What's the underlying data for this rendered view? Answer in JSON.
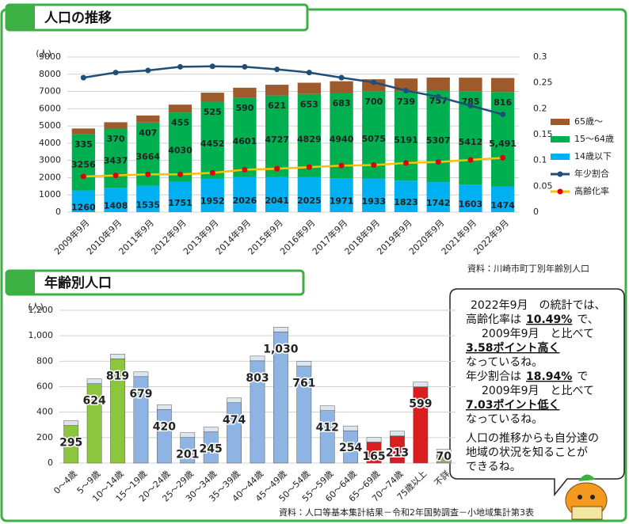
{
  "chart_data": [
    {
      "type": "bar",
      "title": "人口の推移",
      "stacked": true,
      "y_label": "(人)",
      "source": "資料：川崎市町丁別年齢別人口",
      "categories": [
        "2009年9月",
        "2010年9月",
        "2011年9月",
        "2012年9月",
        "2013年9月",
        "2014年9月",
        "2015年9月",
        "2016年9月",
        "2017年9月",
        "2018年9月",
        "2019年9月",
        "2020年9月",
        "2021年9月",
        "2022年9月"
      ],
      "series": [
        {
          "name": "14歳以下",
          "color": "#00b0f0",
          "values": [
            1260,
            1408,
            1535,
            1751,
            1952,
            2026,
            2041,
            2025,
            1971,
            1933,
            1823,
            1742,
            1603,
            1474
          ]
        },
        {
          "name": "15～64歳",
          "color": "#00b050",
          "values": [
            3256,
            3437,
            3664,
            4030,
            4452,
            4601,
            4727,
            4829,
            4940,
            5075,
            5191,
            5307,
            5412,
            5491
          ],
          "value_labels": [
            "3256",
            "3437",
            "3664",
            "4030",
            "4452",
            "4601",
            "4727",
            "4829",
            "4940",
            "5075",
            "5191",
            "5307",
            "5412",
            "5,491"
          ]
        },
        {
          "name": "65歳～",
          "color": "#9e5a2a",
          "values": [
            335,
            370,
            407,
            455,
            525,
            590,
            621,
            653,
            683,
            700,
            739,
            757,
            785,
            816
          ]
        },
        {
          "name": "年少割合",
          "type": "line",
          "axis": "y2",
          "color": "#1f4e79",
          "marker_color": "#1f4e79",
          "values": [
            0.26,
            0.27,
            0.274,
            0.281,
            0.282,
            0.281,
            0.276,
            0.27,
            0.26,
            0.251,
            0.235,
            0.223,
            0.206,
            0.189
          ]
        },
        {
          "name": "高齢化率",
          "type": "line",
          "axis": "y2",
          "color": "#ffc000",
          "marker_color": "#e00000",
          "values": [
            0.069,
            0.071,
            0.073,
            0.073,
            0.076,
            0.082,
            0.084,
            0.087,
            0.09,
            0.091,
            0.095,
            0.097,
            0.101,
            0.105
          ]
        }
      ],
      "ylim": [
        0,
        9000
      ],
      "yticks": [
        0,
        1000,
        2000,
        3000,
        4000,
        5000,
        6000,
        7000,
        8000,
        9000
      ],
      "y2lim": [
        0,
        0.3
      ],
      "y2ticks": [
        0,
        0.05,
        0.1,
        0.15,
        0.2,
        0.25,
        0.3
      ],
      "grid": true,
      "legend": "right"
    },
    {
      "type": "bar",
      "title": "年齢別人口",
      "y_label": "(人)",
      "source": "資料：人口等基本集計結果－令和2年国勢調査－小地域集計第3表",
      "categories": [
        "0～4歳",
        "5～9歳",
        "10～14歳",
        "15～19歳",
        "20～24歳",
        "25～29歳",
        "30～34歳",
        "35～39歳",
        "40～44歳",
        "45～49歳",
        "50～54歳",
        "55～59歳",
        "60～64歳",
        "65～69歳",
        "70～74歳",
        "75歳以上",
        "不詳"
      ],
      "values": [
        295,
        624,
        819,
        679,
        420,
        201,
        245,
        474,
        803,
        1030,
        761,
        412,
        254,
        165,
        213,
        599,
        70
      ],
      "value_labels": [
        "295",
        "624",
        "819",
        "679",
        "420",
        "201",
        "245",
        "474",
        "803",
        "1,030",
        "761",
        "412",
        "254",
        "165",
        "213",
        "599",
        "70"
      ],
      "colors": [
        "#8cc63f",
        "#8cc63f",
        "#8cc63f",
        "#8eb4e3",
        "#8eb4e3",
        "#8eb4e3",
        "#8eb4e3",
        "#8eb4e3",
        "#8eb4e3",
        "#8eb4e3",
        "#8eb4e3",
        "#8eb4e3",
        "#8eb4e3",
        "#d81e1e",
        "#d81e1e",
        "#d81e1e",
        "#a6a27a"
      ],
      "ylim": [
        0,
        1200
      ],
      "yticks": [
        0,
        200,
        400,
        600,
        800,
        {
          "value": 1000,
          "label": "1,000"
        },
        {
          "value": 1200,
          "label": "1,200"
        }
      ],
      "grid": true
    }
  ],
  "callout": {
    "lines": [
      "2022年9月　の統計では、",
      [
        "高齢化率は",
        "10.49%",
        "で、"
      ],
      "2009年9月　と比べて",
      "3.58ポイント高く",
      "なっているね。",
      [
        "年少割合は",
        "18.94%",
        "で"
      ],
      "2009年9月　と比べて",
      "7.03ポイント低く",
      "なっているね。",
      "人口の推移からも自分達の",
      "地域の状況を知ることが",
      "できるね。"
    ]
  }
}
